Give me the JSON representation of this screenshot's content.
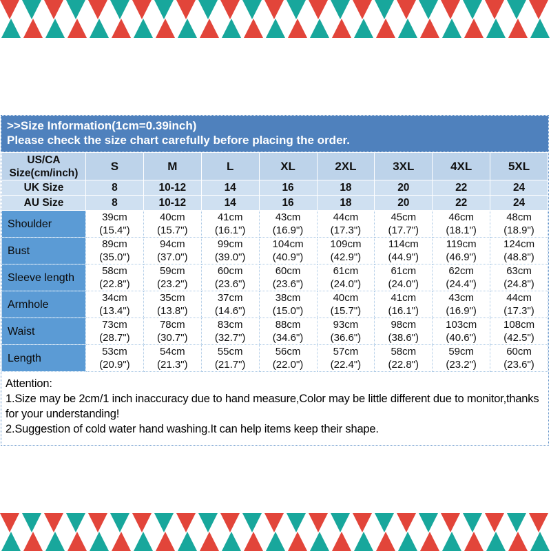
{
  "banner": {
    "line1": ">>Size Information(1cm=0.39inch)",
    "line2": "Please check the size chart carefully before placing the order."
  },
  "table": {
    "corner_header_line1": "US/CA",
    "corner_header_line2": "Size(cm/inch)",
    "size_headers": [
      "S",
      "M",
      "L",
      "XL",
      "2XL",
      "3XL",
      "4XL",
      "5XL"
    ],
    "size_rows": [
      {
        "label": "UK Size",
        "values": [
          "8",
          "10-12",
          "14",
          "16",
          "18",
          "20",
          "22",
          "24"
        ]
      },
      {
        "label": "AU Size",
        "values": [
          "8",
          "10-12",
          "14",
          "16",
          "18",
          "20",
          "22",
          "24"
        ]
      }
    ],
    "measurements": [
      {
        "label": "Shoulder",
        "cm": [
          "39cm",
          "40cm",
          "41cm",
          "43cm",
          "44cm",
          "45cm",
          "46cm",
          "48cm"
        ],
        "inch": [
          "(15.4\")",
          "(15.7\")",
          "(16.1\")",
          "(16.9\")",
          "(17.3\")",
          "(17.7\")",
          "(18.1\")",
          "(18.9\")"
        ]
      },
      {
        "label": "Bust",
        "cm": [
          "89cm",
          "94cm",
          "99cm",
          "104cm",
          "109cm",
          "114cm",
          "119cm",
          "124cm"
        ],
        "inch": [
          "(35.0\")",
          "(37.0\")",
          "(39.0\")",
          "(40.9\")",
          "(42.9\")",
          "(44.9\")",
          "(46.9\")",
          "(48.8\")"
        ]
      },
      {
        "label": "Sleeve length",
        "cm": [
          "58cm",
          "59cm",
          "60cm",
          "60cm",
          "61cm",
          "61cm",
          "62cm",
          "63cm"
        ],
        "inch": [
          "(22.8\")",
          "(23.2\")",
          "(23.6\")",
          "(23.6\")",
          "(24.0\")",
          "(24.0\")",
          "(24.4\")",
          "(24.8\")"
        ]
      },
      {
        "label": "Armhole",
        "cm": [
          "34cm",
          "35cm",
          "37cm",
          "38cm",
          "40cm",
          "41cm",
          "43cm",
          "44cm"
        ],
        "inch": [
          "(13.4\")",
          "(13.8\")",
          "(14.6\")",
          "(15.0\")",
          "(15.7\")",
          "(16.1\")",
          "(16.9\")",
          "(17.3\")"
        ]
      },
      {
        "label": "Waist",
        "cm": [
          "73cm",
          "78cm",
          "83cm",
          "88cm",
          "93cm",
          "98cm",
          "103cm",
          "108cm"
        ],
        "inch": [
          "(28.7\")",
          "(30.7\")",
          "(32.7\")",
          "(34.6\")",
          "(36.6\")",
          "(38.6\")",
          "(40.6\")",
          "(42.5\")"
        ]
      },
      {
        "label": "Length",
        "cm": [
          "53cm",
          "54cm",
          "55cm",
          "56cm",
          "57cm",
          "58cm",
          "59cm",
          "60cm"
        ],
        "inch": [
          "(20.9\")",
          "(21.3\")",
          "(21.7\")",
          "(22.0\")",
          "(22.4\")",
          "(22.8\")",
          "(23.2\")",
          "(23.6\")"
        ]
      }
    ]
  },
  "attention": {
    "title": "Attention:",
    "lines": [
      "1.Size may be 2cm/1 inch inaccuracy due to hand measure,Color may be little different due to monitor,thanks for your understanding!",
      "2.Suggestion of cold water hand washing.It can help items keep their shape."
    ]
  },
  "colors": {
    "banner_bg": "#4f81bd",
    "header_row_bg": "#bdd3ea",
    "size_row_bg": "#cfe0f1",
    "label_col_bg": "#5b9bd5",
    "band_red": "#e2453a",
    "band_teal": "#18a79c"
  }
}
